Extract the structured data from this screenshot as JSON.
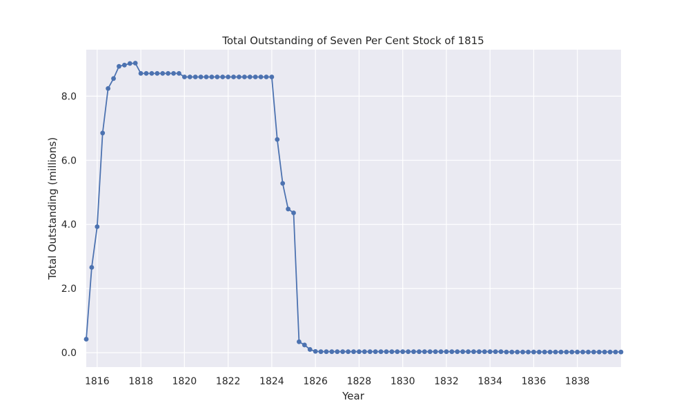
{
  "chart_data": {
    "type": "line",
    "title": "Total Outstanding of Seven Per Cent Stock of 1815",
    "xlabel": "Year",
    "ylabel": "Total Outstanding (millions)",
    "xlim": [
      1815.5,
      1840.0
    ],
    "ylim": [
      -0.45,
      9.45
    ],
    "x_ticks": [
      1816,
      1818,
      1820,
      1822,
      1824,
      1826,
      1828,
      1830,
      1832,
      1834,
      1836,
      1838
    ],
    "y_ticks": [
      0.0,
      2.0,
      4.0,
      6.0,
      8.0
    ],
    "x_tick_labels": [
      "1816",
      "1818",
      "1820",
      "1822",
      "1824",
      "1826",
      "1828",
      "1830",
      "1832",
      "1834",
      "1836",
      "1838"
    ],
    "y_tick_labels": [
      "0.0",
      "2.0",
      "4.0",
      "6.0",
      "8.0"
    ],
    "grid": true,
    "series_color": "#4c72b0",
    "background_color": "#eaeaf2",
    "series": [
      {
        "name": "",
        "x": [
          1815.5,
          1815.75,
          1816.0,
          1816.25,
          1816.5,
          1816.75,
          1817.0,
          1817.25,
          1817.5,
          1817.75,
          1818.0,
          1818.25,
          1818.5,
          1818.75,
          1819.0,
          1819.25,
          1819.5,
          1819.75,
          1820.0,
          1820.25,
          1820.5,
          1820.75,
          1821.0,
          1821.25,
          1821.5,
          1821.75,
          1822.0,
          1822.25,
          1822.5,
          1822.75,
          1823.0,
          1823.25,
          1823.5,
          1823.75,
          1824.0,
          1824.25,
          1824.5,
          1824.75,
          1825.0,
          1825.25,
          1825.5,
          1825.75,
          1826.0,
          1826.25,
          1826.5,
          1826.75,
          1827.0,
          1827.25,
          1827.5,
          1827.75,
          1828.0,
          1828.25,
          1828.5,
          1828.75,
          1829.0,
          1829.25,
          1829.5,
          1829.75,
          1830.0,
          1830.25,
          1830.5,
          1830.75,
          1831.0,
          1831.25,
          1831.5,
          1831.75,
          1832.0,
          1832.25,
          1832.5,
          1832.75,
          1833.0,
          1833.25,
          1833.5,
          1833.75,
          1834.0,
          1834.25,
          1834.5,
          1834.75,
          1835.0,
          1835.25,
          1835.5,
          1835.75,
          1836.0,
          1836.25,
          1836.5,
          1836.75,
          1837.0,
          1837.25,
          1837.5,
          1837.75,
          1838.0,
          1838.25,
          1838.5,
          1838.75,
          1839.0,
          1839.25,
          1839.5,
          1839.75,
          1840.0
        ],
        "y": [
          0.42,
          2.66,
          3.93,
          6.85,
          8.24,
          8.55,
          8.93,
          8.97,
          9.02,
          9.03,
          8.71,
          8.71,
          8.71,
          8.71,
          8.71,
          8.71,
          8.71,
          8.71,
          8.6,
          8.6,
          8.6,
          8.6,
          8.6,
          8.6,
          8.6,
          8.6,
          8.6,
          8.6,
          8.6,
          8.6,
          8.6,
          8.6,
          8.6,
          8.6,
          8.6,
          6.65,
          5.28,
          4.48,
          4.36,
          0.34,
          0.24,
          0.1,
          0.04,
          0.03,
          0.03,
          0.03,
          0.03,
          0.03,
          0.03,
          0.03,
          0.03,
          0.03,
          0.03,
          0.03,
          0.03,
          0.03,
          0.03,
          0.03,
          0.03,
          0.03,
          0.03,
          0.03,
          0.03,
          0.03,
          0.03,
          0.03,
          0.03,
          0.03,
          0.03,
          0.03,
          0.03,
          0.03,
          0.03,
          0.03,
          0.03,
          0.03,
          0.03,
          0.02,
          0.02,
          0.02,
          0.02,
          0.02,
          0.02,
          0.02,
          0.02,
          0.02,
          0.02,
          0.02,
          0.02,
          0.02,
          0.02,
          0.02,
          0.02,
          0.02,
          0.02,
          0.02,
          0.02,
          0.02,
          0.02
        ]
      }
    ]
  }
}
